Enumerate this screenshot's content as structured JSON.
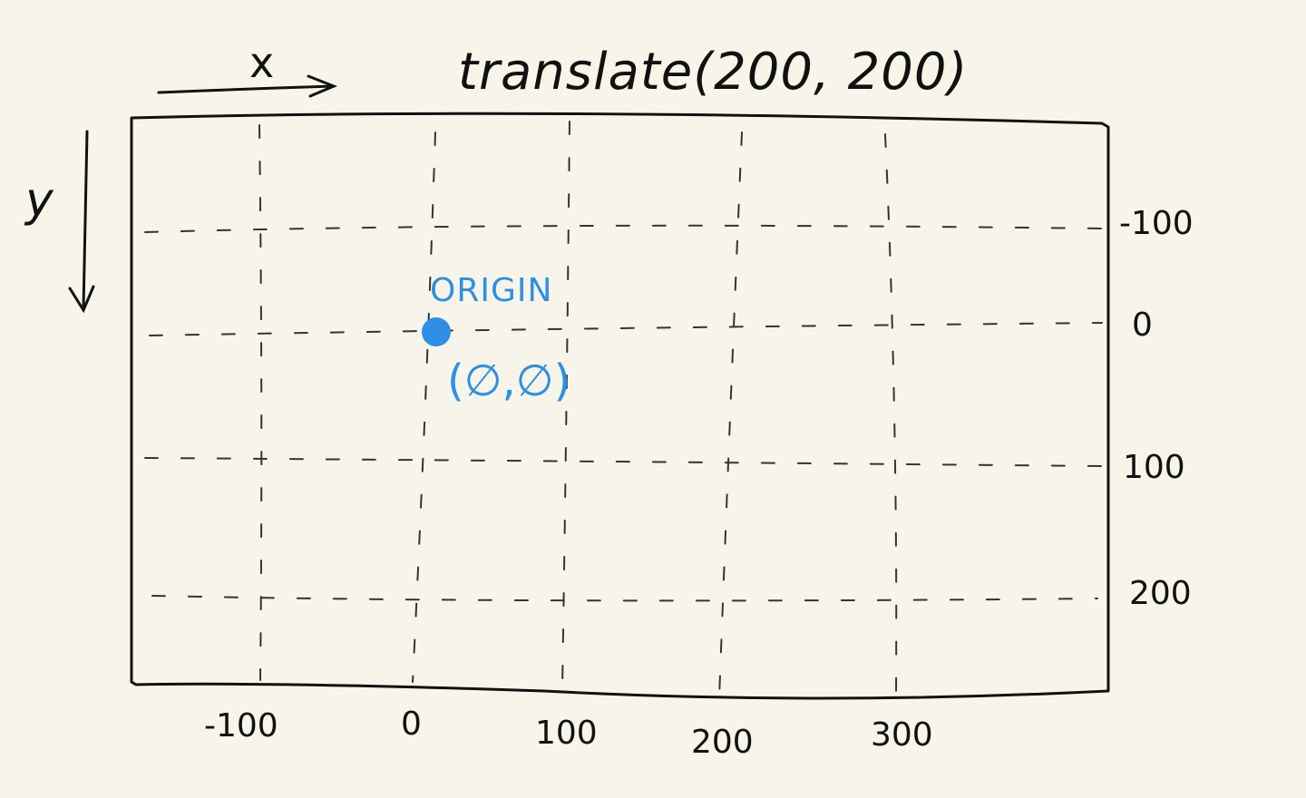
{
  "title": "translate(200, 200)",
  "axes": {
    "x_label": "x",
    "y_label": "y"
  },
  "x_tick_labels": [
    "-100",
    "0",
    "100",
    "200",
    "300"
  ],
  "y_tick_labels": [
    "-100",
    "0",
    "100",
    "200"
  ],
  "origin": {
    "label": "ORIGIN",
    "coords": "(∅,∅)",
    "color": "#2f8fe6"
  },
  "colors": {
    "ink": "#111111",
    "paper": "#f7f5ea",
    "accent": "#2f8fe6"
  }
}
